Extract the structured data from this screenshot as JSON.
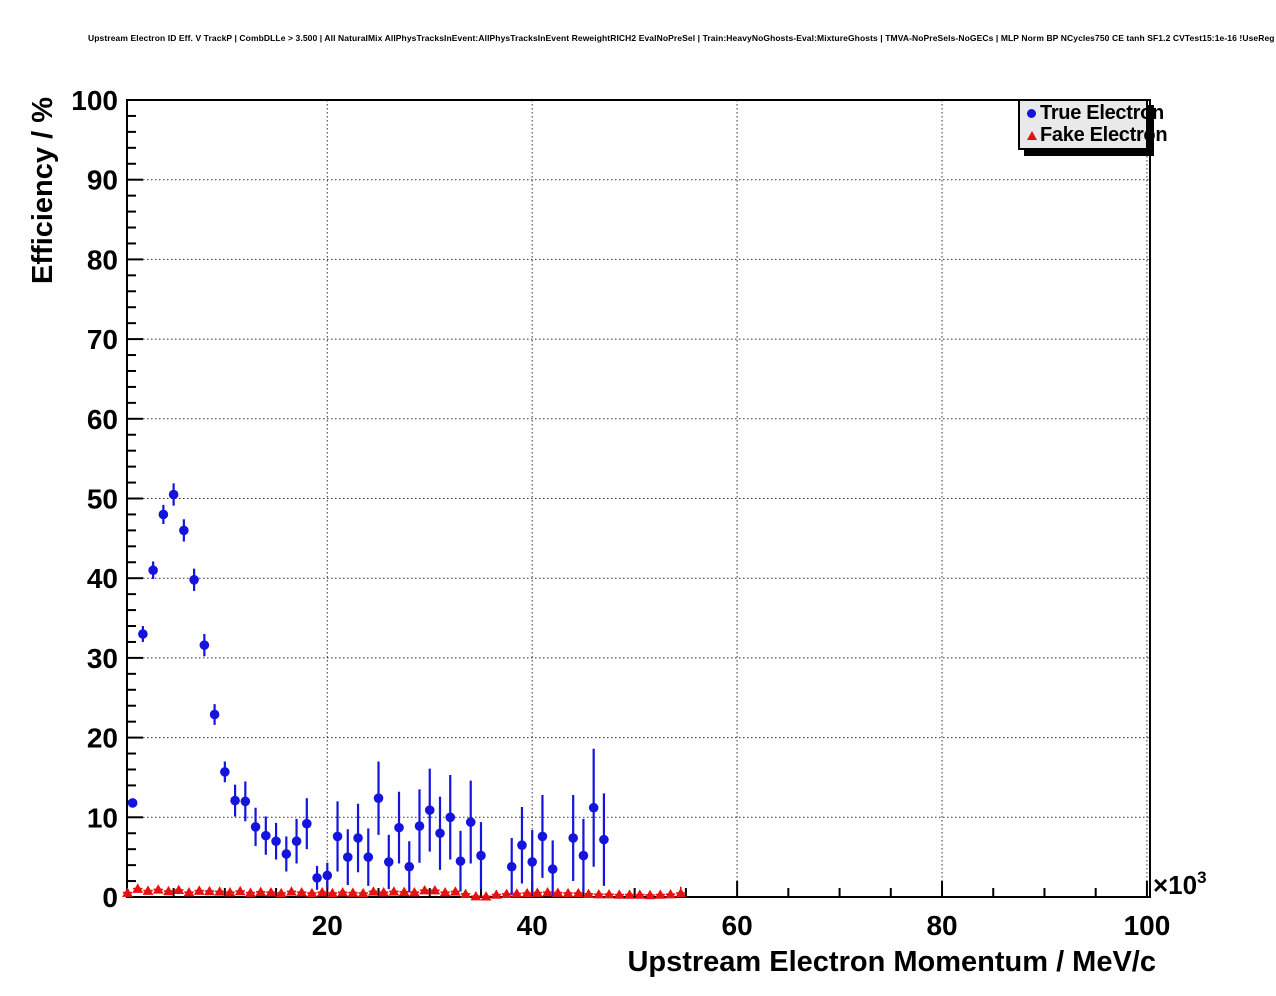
{
  "chart_data": {
    "type": "scatter",
    "title": "Upstream Electron ID Eff. V TrackP | CombDLLe > 3.500 | All NaturalMix AllPhysTracksInEvent:AllPhysTracksInEvent ReweightRICH2 EvalNoPreSel | Train:HeavyNoGhosts-Eval:MixtureGhosts | TMVA-NoPreSels-NoGECs | MLP Norm BP NCycles750 CE tanh SF1.2 CVTest15:1e-16 !UseReg",
    "xlabel": "Upstream Electron Momentum / MeV/c",
    "ylabel": "Efficiency / %",
    "x_unit_exponent": {
      "prefix": "×10",
      "power": "3"
    },
    "xlim": [
      0.45,
      100.3
    ],
    "ylim": [
      0,
      100
    ],
    "x_major_ticks": [
      20,
      40,
      60,
      80,
      100
    ],
    "x_minor_step": 5,
    "y_major_ticks": [
      0,
      10,
      20,
      30,
      40,
      50,
      60,
      70,
      80,
      90,
      100
    ],
    "y_minor_step": 2,
    "grid": {
      "style": "dotted",
      "color": "#333333"
    },
    "legend": {
      "position": "top-right",
      "entries": [
        {
          "label": "True Electron",
          "marker": "circle",
          "color": "#1414dd"
        },
        {
          "label": "Fake Electron",
          "marker": "triangle",
          "color": "#e51212"
        }
      ]
    },
    "series": [
      {
        "name": "True Electron",
        "marker": "circle",
        "color": "#1414dd",
        "xerr": 0.42,
        "x": [
          1,
          2,
          3,
          4,
          5,
          6,
          7,
          8,
          9,
          10,
          11,
          12,
          13,
          14,
          15,
          16,
          17,
          18,
          19,
          20,
          21,
          22,
          23,
          24,
          25,
          26,
          27,
          28,
          29,
          30,
          31,
          32,
          33,
          34,
          35,
          38,
          39,
          40,
          41,
          42,
          44,
          45,
          46,
          47
        ],
        "y": [
          11.8,
          33.0,
          41.0,
          48.0,
          50.5,
          46.0,
          39.8,
          31.6,
          22.9,
          15.7,
          12.1,
          12.0,
          8.8,
          7.7,
          7.0,
          5.4,
          7.0,
          9.2,
          2.4,
          2.7,
          7.6,
          5.0,
          7.4,
          5.0,
          12.4,
          4.4,
          8.7,
          3.8,
          8.9,
          10.9,
          8.0,
          10.0,
          4.5,
          9.4,
          5.2,
          3.8,
          6.5,
          4.4,
          7.6,
          3.5,
          7.4,
          5.2,
          11.2,
          7.2
        ],
        "yerr": [
          0.5,
          1.0,
          1.1,
          1.2,
          1.4,
          1.4,
          1.4,
          1.4,
          1.3,
          1.3,
          2.0,
          2.5,
          2.4,
          2.4,
          2.3,
          2.2,
          2.8,
          3.2,
          1.5,
          1.6,
          4.4,
          3.5,
          4.3,
          3.6,
          4.6,
          3.4,
          4.5,
          3.2,
          4.6,
          5.2,
          4.6,
          5.3,
          3.8,
          5.2,
          4.2,
          3.6,
          4.8,
          4.0,
          5.2,
          3.6,
          5.4,
          4.6,
          7.4,
          5.8
        ]
      },
      {
        "name": "Fake Electron",
        "marker": "triangle",
        "color": "#e51212",
        "xerr": 0.46,
        "x": [
          0.5,
          1.5,
          2.5,
          3.5,
          4.5,
          5.5,
          6.5,
          7.5,
          8.5,
          9.5,
          10.5,
          11.5,
          12.5,
          13.5,
          14.5,
          15.5,
          16.5,
          17.5,
          18.5,
          19.5,
          20.5,
          21.5,
          22.5,
          23.5,
          24.5,
          25.5,
          26.5,
          27.5,
          28.5,
          29.5,
          30.5,
          31.5,
          32.5,
          33.5,
          34.5,
          35.5,
          36.5,
          37.5,
          38.5,
          39.5,
          40.5,
          41.5,
          42.5,
          43.5,
          44.5,
          45.5,
          46.5,
          47.5,
          48.5,
          49.5,
          50.5,
          51.5,
          52.5,
          53.5,
          54.5
        ],
        "y": [
          0.55,
          1.05,
          0.8,
          0.95,
          0.75,
          0.9,
          0.6,
          0.8,
          0.75,
          0.7,
          0.6,
          0.75,
          0.55,
          0.65,
          0.6,
          0.5,
          0.7,
          0.6,
          0.5,
          0.6,
          0.5,
          0.6,
          0.55,
          0.5,
          0.7,
          0.6,
          0.7,
          0.65,
          0.6,
          0.85,
          0.85,
          0.6,
          0.7,
          0.4,
          0.1,
          0.08,
          0.3,
          0.4,
          0.45,
          0.5,
          0.55,
          0.6,
          0.55,
          0.5,
          0.5,
          0.4,
          0.35,
          0.35,
          0.3,
          0.3,
          0.3,
          0.25,
          0.3,
          0.35,
          0.5
        ],
        "yerr": [
          0.08,
          0.08,
          0.08,
          0.08,
          0.08,
          0.08,
          0.08,
          0.08,
          0.08,
          0.08,
          0.08,
          0.08,
          0.08,
          0.08,
          0.08,
          0.08,
          0.08,
          0.08,
          0.08,
          0.08,
          0.08,
          0.08,
          0.08,
          0.08,
          0.08,
          0.08,
          0.08,
          0.08,
          0.08,
          0.08,
          0.12,
          0.12,
          0.12,
          0.12,
          0.12,
          0.12,
          0.12,
          0.12,
          0.12,
          0.12,
          0.18,
          0.18,
          0.18,
          0.18,
          0.18,
          0.18,
          0.18,
          0.18,
          0.18,
          0.18,
          0.25,
          0.25,
          0.3,
          0.35,
          0.8
        ]
      }
    ]
  }
}
